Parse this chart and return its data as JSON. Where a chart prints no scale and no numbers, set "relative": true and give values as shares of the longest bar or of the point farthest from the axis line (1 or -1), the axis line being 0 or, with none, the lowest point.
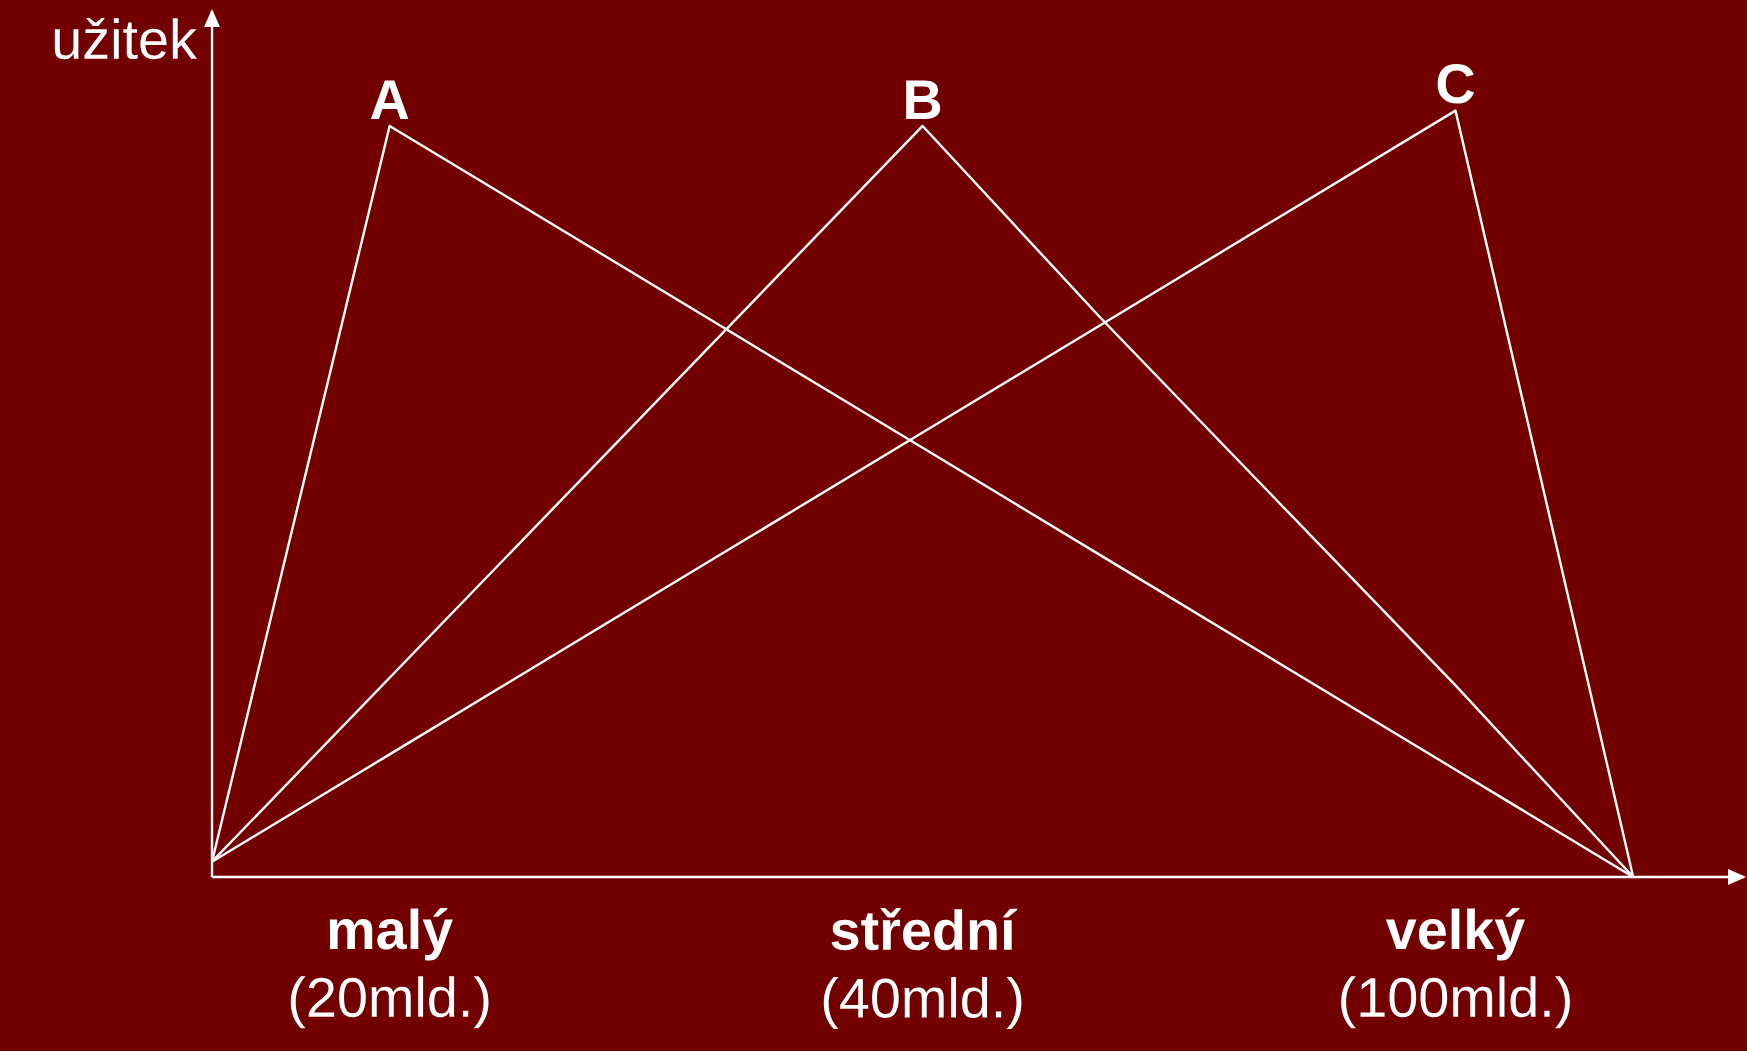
{
  "chart_data": {
    "type": "line",
    "relative": true,
    "ylabel": "užitek",
    "categories": [
      null,
      "**malý** (20mld.)",
      null,
      null,
      "**střední** (40mld.)",
      null,
      null,
      "**velký** (100mld.)",
      null
    ],
    "tick_labels": "x",
    "marker": "none",
    "line_style": "solid",
    "series": [
      {
        "name": "A",
        "color": "#ffffff",
        "values": [
          0.02,
          0.98,
          0.84,
          0.7,
          0.56,
          0.42,
          0.28,
          0.14,
          0
        ]
      },
      {
        "name": "B",
        "color": "#ffffff",
        "values": [
          0.02,
          0.26,
          0.5,
          0.74,
          0.98,
          0.73,
          0.49,
          0.25,
          0
        ]
      },
      {
        "name": "C",
        "color": "#ffffff",
        "values": [
          0.02,
          0.16,
          0.3,
          0.44,
          0.58,
          0.72,
          0.86,
          1,
          0
        ]
      }
    ]
  }
}
